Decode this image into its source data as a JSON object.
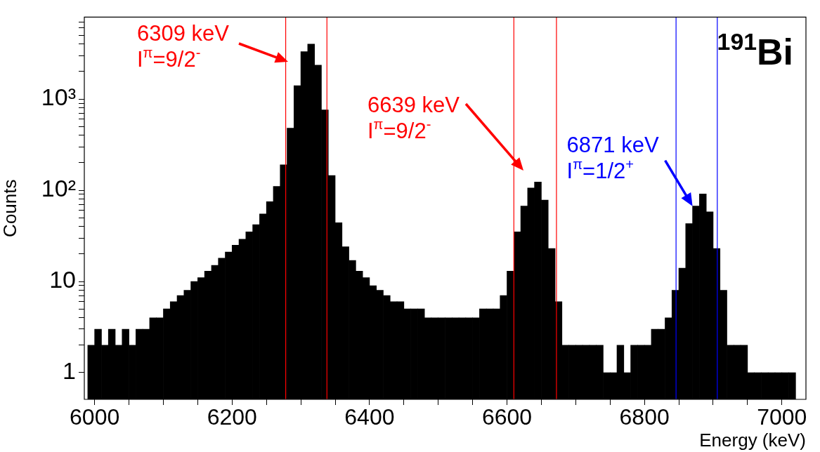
{
  "chart_data": {
    "type": "histogram",
    "title": "$^{191}$Bi",
    "xlabel": "Energy (keV)",
    "ylabel": "Counts",
    "bins": [
      5990,
      6000,
      6010,
      6020,
      6030,
      6040,
      6050,
      6060,
      6070,
      6080,
      6090,
      6100,
      6110,
      6120,
      6130,
      6140,
      6150,
      6160,
      6170,
      6180,
      6190,
      6200,
      6210,
      6220,
      6230,
      6240,
      6250,
      6260,
      6270,
      6280,
      6290,
      6300,
      6310,
      6320,
      6330,
      6340,
      6350,
      6360,
      6370,
      6380,
      6390,
      6400,
      6410,
      6420,
      6430,
      6440,
      6450,
      6460,
      6470,
      6480,
      6490,
      6500,
      6510,
      6520,
      6530,
      6540,
      6550,
      6560,
      6570,
      6580,
      6590,
      6600,
      6610,
      6620,
      6630,
      6640,
      6650,
      6660,
      6670,
      6680,
      6690,
      6700,
      6710,
      6720,
      6730,
      6740,
      6750,
      6760,
      6770,
      6780,
      6790,
      6800,
      6810,
      6820,
      6830,
      6840,
      6850,
      6860,
      6870,
      6880,
      6890,
      6900,
      6910,
      6920,
      6930,
      6940,
      6950,
      6960,
      6970,
      6980,
      6990,
      7000,
      7010,
      7020
    ],
    "values": [
      2,
      3,
      2,
      3,
      2,
      3,
      2,
      3,
      3,
      4,
      4,
      5,
      6,
      7,
      8,
      10,
      11,
      13,
      15,
      18,
      21,
      25,
      29,
      35,
      42,
      55,
      75,
      110,
      190,
      480,
      1400,
      3300,
      4000,
      2350,
      760,
      145,
      44,
      24,
      17,
      13,
      11,
      9,
      8,
      7,
      6,
      6,
      5,
      5,
      5,
      4,
      4,
      4,
      4,
      4,
      4,
      4,
      4,
      5,
      5,
      5,
      7,
      13,
      35,
      67,
      106,
      123,
      78,
      23,
      6,
      2,
      2,
      2,
      2,
      2,
      2,
      1,
      1,
      2,
      1,
      2,
      2,
      2,
      3,
      3,
      4,
      8,
      14,
      43,
      67,
      91,
      58,
      23,
      8,
      2,
      2,
      2,
      1,
      1,
      1,
      1,
      1,
      1,
      1
    ],
    "color": "#000000",
    "xlim": [
      5985,
      7035
    ],
    "xticks": [
      6000,
      {
        "value": 6050,
        "label": null
      },
      {
        "value": 6100,
        "label": null
      },
      {
        "value": 6150,
        "label": null
      },
      6200,
      {
        "value": 6250,
        "label": null
      },
      {
        "value": 6300,
        "label": null
      },
      {
        "value": 6350,
        "label": null
      },
      6400,
      {
        "value": 6450,
        "label": null
      },
      {
        "value": 6500,
        "label": null
      },
      {
        "value": 6550,
        "label": null
      },
      6600,
      {
        "value": 6650,
        "label": null
      },
      {
        "value": 6700,
        "label": null
      },
      {
        "value": 6750,
        "label": null
      },
      6800,
      {
        "value": 6850,
        "label": null
      },
      {
        "value": 6900,
        "label": null
      },
      {
        "value": 6950,
        "label": null
      },
      7000
    ],
    "ylim": [
      0.51,
      7900
    ],
    "log": "y",
    "yticks": [
      1,
      {
        "value": 2,
        "label": null
      },
      {
        "value": 3,
        "label": null
      },
      {
        "value": 4,
        "label": null
      },
      {
        "value": 5,
        "label": null
      },
      {
        "value": 6,
        "label": null
      },
      {
        "value": 7,
        "label": null
      },
      {
        "value": 8,
        "label": null
      },
      {
        "value": 9,
        "label": null
      },
      10,
      {
        "value": 20,
        "label": null
      },
      {
        "value": 30,
        "label": null
      },
      {
        "value": 40,
        "label": null
      },
      {
        "value": 50,
        "label": null
      },
      {
        "value": 60,
        "label": null
      },
      {
        "value": 70,
        "label": null
      },
      {
        "value": 80,
        "label": null
      },
      {
        "value": 90,
        "label": null
      },
      {
        "value": 100,
        "label": "10²"
      },
      {
        "value": 200,
        "label": null
      },
      {
        "value": 300,
        "label": null
      },
      {
        "value": 400,
        "label": null
      },
      {
        "value": 500,
        "label": null
      },
      {
        "value": 600,
        "label": null
      },
      {
        "value": 700,
        "label": null
      },
      {
        "value": 800,
        "label": null
      },
      {
        "value": 900,
        "label": null
      },
      {
        "value": 1000,
        "label": "10³"
      },
      {
        "value": 2000,
        "label": null
      },
      {
        "value": 3000,
        "label": null
      },
      {
        "value": 4000,
        "label": null
      },
      {
        "value": 5000,
        "label": null
      },
      {
        "value": 6000,
        "label": null
      },
      {
        "value": 7000,
        "label": null
      }
    ],
    "grid": false,
    "ref_lines": [
      {
        "axis": "x",
        "value": 6278,
        "color": "#ff0000"
      },
      {
        "axis": "x",
        "value": 6338,
        "color": "#ff0000"
      },
      {
        "axis": "x",
        "value": 6610,
        "color": "#ff0000"
      },
      {
        "axis": "x",
        "value": 6672,
        "color": "#ff0000"
      },
      {
        "axis": "x",
        "value": 6846,
        "color": "#0000ff"
      },
      {
        "axis": "x",
        "value": 6906,
        "color": "#0000ff"
      }
    ],
    "annotations": [
      "6309 keV\nI$^{π}$=9/2$^{-}$",
      "6639 keV\nI$^{π}$=9/2$^{-}$",
      {
        "text": "6871 keV\nI$^{π}$=1/2$^{+}$",
        "x": 6870,
        "y": 67
      }
    ]
  }
}
